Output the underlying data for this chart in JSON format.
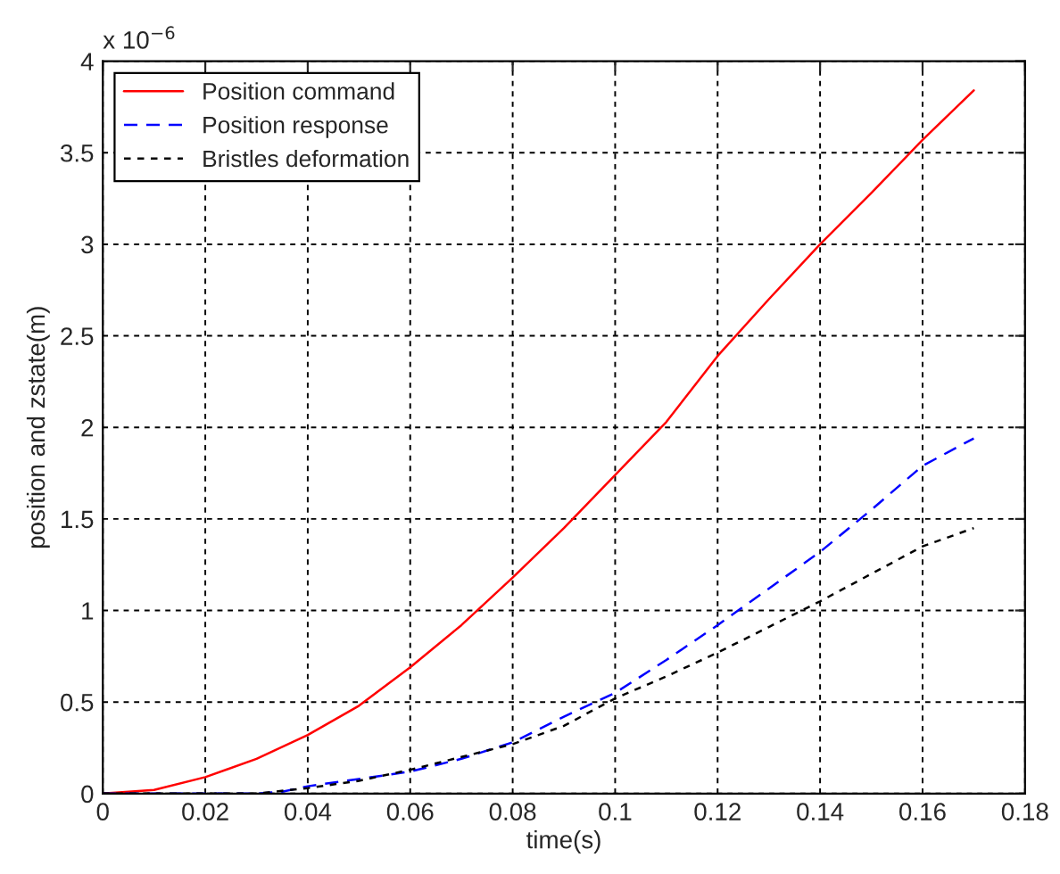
{
  "chart_data": {
    "type": "line",
    "xlabel": "time(s)",
    "ylabel": "position and zstate(m)",
    "annotations": [
      "x 10$^{−6}$"
    ],
    "xlim": [
      0,
      0.18
    ],
    "xticks": [
      0,
      0.02,
      0.04,
      0.06,
      0.08,
      0.1,
      0.12,
      0.14,
      0.16,
      0.18
    ],
    "ylim": [
      0,
      4
    ],
    "yticks": [
      0,
      0.5,
      1,
      1.5,
      2,
      2.5,
      3,
      3.5,
      4
    ],
    "grid": true,
    "legend": "top left",
    "series": [
      {
        "name": "Position command",
        "color": "#ff0000",
        "line_style": "solid",
        "x": [
          0,
          0.01,
          0.02,
          0.03,
          0.04,
          0.05,
          0.06,
          0.07,
          0.08,
          0.09,
          0.1,
          0.11,
          0.12,
          0.13,
          0.14,
          0.15,
          0.16,
          0.17
        ],
        "values": [
          0,
          0.02,
          0.09,
          0.19,
          0.32,
          0.48,
          0.69,
          0.92,
          1.18,
          1.45,
          1.74,
          2.03,
          2.39,
          2.7,
          3.0,
          3.28,
          3.57,
          3.84
        ]
      },
      {
        "name": "Position response",
        "color": "#0000ff",
        "line_style": "dashed",
        "x": [
          0,
          0.03,
          0.035,
          0.04,
          0.05,
          0.06,
          0.07,
          0.08,
          0.09,
          0.1,
          0.11,
          0.12,
          0.13,
          0.14,
          0.15,
          0.16,
          0.17
        ],
        "values": [
          0,
          0,
          0.01,
          0.04,
          0.08,
          0.12,
          0.19,
          0.28,
          0.42,
          0.55,
          0.73,
          0.92,
          1.12,
          1.32,
          1.55,
          1.79,
          1.94
        ]
      },
      {
        "name": "Bristles deformation",
        "color": "#000000",
        "line_style": "dotted",
        "x": [
          0,
          0.03,
          0.04,
          0.05,
          0.06,
          0.07,
          0.08,
          0.09,
          0.1,
          0.11,
          0.12,
          0.13,
          0.14,
          0.15,
          0.16,
          0.17
        ],
        "values": [
          0,
          0,
          0.03,
          0.07,
          0.13,
          0.2,
          0.27,
          0.37,
          0.52,
          0.64,
          0.77,
          0.91,
          1.05,
          1.2,
          1.35,
          1.45
        ]
      }
    ]
  }
}
